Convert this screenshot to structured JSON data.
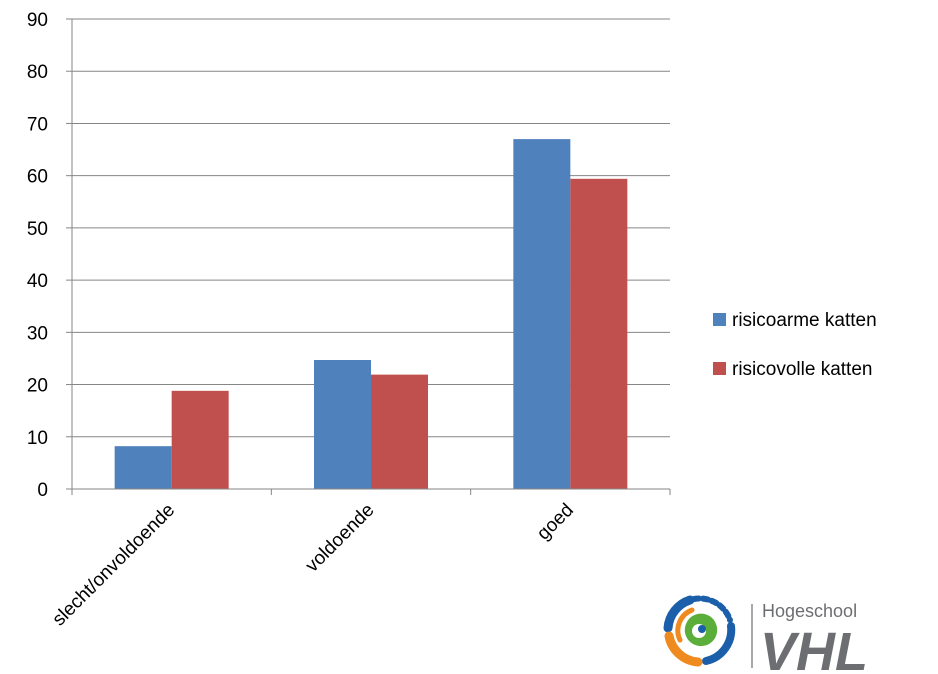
{
  "chart_data": {
    "type": "bar",
    "categories": [
      "slecht/onvoldoende",
      "voldoende",
      "goed"
    ],
    "series": [
      {
        "name": "risicoarme katten",
        "color": "#4F81BD",
        "values": [
          8.2,
          24.7,
          67
        ]
      },
      {
        "name": "risicovolle katten",
        "color": "#C0504D",
        "values": [
          18.8,
          21.9,
          59.4
        ]
      }
    ],
    "ylim": [
      0,
      90
    ],
    "yticks": [
      0,
      10,
      20,
      30,
      40,
      50,
      60,
      70,
      80,
      90
    ],
    "grid": true,
    "legend": "right",
    "title": "",
    "xlabel": "",
    "ylabel": ""
  },
  "logo": {
    "small_text": "Hogeschool",
    "big_text": "VHL",
    "colors": {
      "blue": "#1B5FAA",
      "green": "#5BAE3A",
      "orange": "#EE8A1E",
      "gray": "#6D6E71"
    }
  }
}
